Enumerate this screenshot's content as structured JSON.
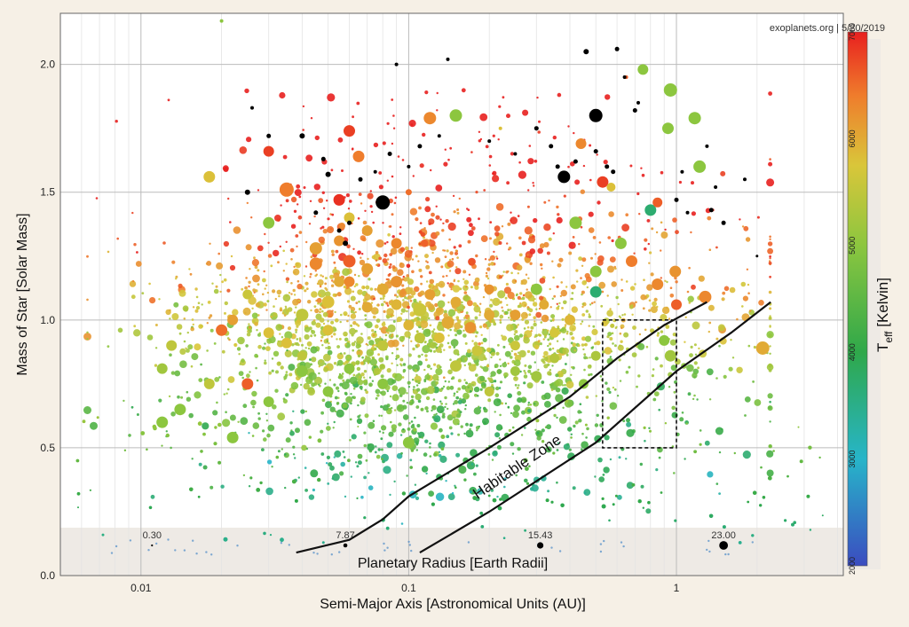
{
  "chart_data": {
    "type": "scatter",
    "credit": "exoplanets.org | 5/20/2019",
    "xlabel": "Semi-Major Axis [Astronomical Units (AU)]",
    "ylabel": "Mass of Star [Solar Mass]",
    "x_scale": "log",
    "xlim": [
      0.005,
      4.2
    ],
    "ylim": [
      0.0,
      2.2
    ],
    "x_ticks": [
      {
        "value": 0.01,
        "label": "0.01"
      },
      {
        "value": 0.1,
        "label": "0.1"
      },
      {
        "value": 1,
        "label": "1"
      }
    ],
    "y_ticks": [
      {
        "value": 0.0,
        "label": "0.0"
      },
      {
        "value": 0.5,
        "label": "0.5"
      },
      {
        "value": 1.0,
        "label": "1.0"
      },
      {
        "value": 1.5,
        "label": "1.5"
      },
      {
        "value": 2.0,
        "label": "2.0"
      }
    ],
    "grid": true,
    "colorbar": {
      "title_main": "T",
      "title_sub": "eff",
      "title_rest": " [Kelvin]",
      "range": [
        2000,
        7000
      ],
      "ticks": [
        {
          "value": 2000,
          "label": "2000"
        },
        {
          "value": 3000,
          "label": "3000"
        },
        {
          "value": 4000,
          "label": "4000"
        },
        {
          "value": 5000,
          "label": "5000"
        },
        {
          "value": 6000,
          "label": "6000"
        },
        {
          "value": 7000,
          "label": "7000"
        }
      ]
    },
    "size_legend": {
      "title": "Planetary Radius [Earth Radii]",
      "entries": [
        {
          "label": "0.30",
          "x": 0.011,
          "radius_earth": 0.3
        },
        {
          "label": "7.87",
          "x": 0.058,
          "radius_earth": 7.87
        },
        {
          "label": "15.43",
          "x": 0.31,
          "radius_earth": 15.43
        },
        {
          "label": "23.00",
          "x": 1.5,
          "radius_earth": 23.0
        }
      ]
    },
    "habitable_zone": {
      "label": "Habitable Zone",
      "inner_edge": [
        [
          0.038,
          0.09
        ],
        [
          0.06,
          0.14
        ],
        [
          0.08,
          0.22
        ],
        [
          0.1,
          0.31
        ],
        [
          0.2,
          0.5
        ],
        [
          0.4,
          0.7
        ],
        [
          0.6,
          0.85
        ],
        [
          0.9,
          0.98
        ],
        [
          1.3,
          1.07
        ]
      ],
      "outer_edge": [
        [
          0.11,
          0.09
        ],
        [
          0.2,
          0.25
        ],
        [
          0.5,
          0.52
        ],
        [
          1.0,
          0.8
        ],
        [
          1.6,
          0.95
        ],
        [
          2.25,
          1.07
        ]
      ]
    },
    "highlight_box": {
      "x": [
        0.53,
        1.0
      ],
      "y": [
        0.5,
        1.0
      ]
    },
    "series": [
      {
        "points": [
          [
            0.02,
            2.17,
            5000,
            4
          ],
          [
            0.018,
            1.56,
            5800,
            13
          ],
          [
            0.03,
            1.66,
            6800,
            12
          ],
          [
            0.035,
            1.51,
            6400,
            16
          ],
          [
            0.06,
            1.74,
            6800,
            13
          ],
          [
            0.065,
            1.64,
            6400,
            13
          ],
          [
            0.055,
            1.47,
            6900,
            13
          ],
          [
            0.08,
            1.46,
            0,
            16
          ],
          [
            0.1,
            1.5,
            6500,
            7
          ],
          [
            0.12,
            1.79,
            6300,
            14
          ],
          [
            0.15,
            1.8,
            5000,
            14
          ],
          [
            0.22,
            1.75,
            5800,
            4
          ],
          [
            0.38,
            1.56,
            0,
            14
          ],
          [
            0.5,
            1.8,
            0,
            15
          ],
          [
            0.44,
            1.69,
            6300,
            12
          ],
          [
            0.53,
            1.54,
            6800,
            13
          ],
          [
            0.57,
            1.52,
            5800,
            10
          ],
          [
            0.8,
            1.43,
            3700,
            13
          ],
          [
            0.85,
            1.46,
            6600,
            11
          ],
          [
            0.93,
            1.75,
            5000,
            13
          ],
          [
            0.95,
            1.9,
            5000,
            15
          ],
          [
            1.17,
            1.79,
            5000,
            14
          ],
          [
            1.22,
            1.6,
            5000,
            14
          ],
          [
            0.75,
            1.98,
            5000,
            12
          ],
          [
            0.65,
            1.95,
            6600,
            4
          ],
          [
            0.72,
            1.85,
            0,
            4
          ],
          [
            0.42,
            1.38,
            5000,
            14
          ],
          [
            0.5,
            1.19,
            5000,
            13
          ],
          [
            0.5,
            1.11,
            3700,
            13
          ],
          [
            0.62,
            1.3,
            5000,
            13
          ],
          [
            0.68,
            1.23,
            6400,
            13
          ],
          [
            0.85,
            1.14,
            6300,
            13
          ],
          [
            0.99,
            1.19,
            6200,
            13
          ],
          [
            1.28,
            1.09,
            6300,
            14
          ],
          [
            1.0,
            1.06,
            6600,
            12
          ],
          [
            0.9,
            0.92,
            5000,
            12
          ],
          [
            0.95,
            0.86,
            5200,
            13
          ],
          [
            2.1,
            0.89,
            6000,
            15
          ],
          [
            0.3,
            1.12,
            5000,
            13
          ],
          [
            0.2,
            1.02,
            6000,
            12
          ],
          [
            0.11,
            1.04,
            5600,
            15
          ],
          [
            0.14,
            0.99,
            6000,
            14
          ],
          [
            0.17,
            0.97,
            6200,
            13
          ],
          [
            0.09,
            1.15,
            6200,
            13
          ],
          [
            0.07,
            1.2,
            6100,
            13
          ],
          [
            0.06,
            1.23,
            6600,
            14
          ],
          [
            0.05,
            1.07,
            5800,
            14
          ],
          [
            0.04,
            1.02,
            5500,
            14
          ],
          [
            0.03,
            1.38,
            5000,
            13
          ],
          [
            0.025,
            1.1,
            5600,
            11
          ],
          [
            0.022,
            1.0,
            6100,
            12
          ],
          [
            0.02,
            0.96,
            6500,
            13
          ],
          [
            0.013,
            0.9,
            5500,
            12
          ],
          [
            0.012,
            0.81,
            5200,
            12
          ],
          [
            0.012,
            0.6,
            5000,
            13
          ],
          [
            0.014,
            0.65,
            5000,
            13
          ],
          [
            0.018,
            0.75,
            5500,
            12
          ],
          [
            0.022,
            0.54,
            5000,
            13
          ],
          [
            0.025,
            0.75,
            6600,
            13
          ],
          [
            0.04,
            0.8,
            5000,
            13
          ],
          [
            0.06,
            0.81,
            5000,
            12
          ],
          [
            0.1,
            0.52,
            5000,
            13
          ],
          [
            0.15,
            0.82,
            5500,
            13
          ],
          [
            0.2,
            0.72,
            5500,
            11
          ],
          [
            0.25,
            0.8,
            5200,
            11
          ],
          [
            0.035,
            0.91,
            5800,
            12
          ],
          [
            0.045,
            1.28,
            6100,
            14
          ],
          [
            0.06,
            1.4,
            5800,
            12
          ],
          [
            0.07,
            1.35,
            6100,
            12
          ],
          [
            0.09,
            1.3,
            6300,
            12
          ],
          [
            0.045,
            1.22,
            6300,
            14
          ],
          [
            0.055,
            1.15,
            6000,
            12
          ],
          [
            0.08,
            1.12,
            6000,
            13
          ],
          [
            0.12,
            1.1,
            6100,
            12
          ],
          [
            0.15,
            1.07,
            6000,
            12
          ],
          [
            0.25,
            1.02,
            6100,
            12
          ],
          [
            0.2,
            1.12,
            6200,
            11
          ],
          [
            0.4,
            1.0,
            5900,
            12
          ],
          [
            0.35,
            0.95,
            5700,
            11
          ],
          [
            0.32,
            1.06,
            6000,
            11
          ],
          [
            0.05,
            0.96,
            5800,
            12
          ],
          [
            0.08,
            0.9,
            5500,
            12
          ],
          [
            0.1,
            0.98,
            5900,
            12
          ],
          [
            0.13,
            0.93,
            5800,
            12
          ],
          [
            0.18,
            0.88,
            5600,
            12
          ],
          [
            0.25,
            0.9,
            5600,
            11
          ],
          [
            0.04,
            0.86,
            5500,
            11
          ],
          [
            0.03,
            0.95,
            5800,
            12
          ],
          [
            0.055,
            1.31,
            6200,
            12
          ],
          [
            0.06,
            1.15,
            6300,
            12
          ],
          [
            0.07,
            1.05,
            6000,
            12
          ],
          [
            0.09,
            1.06,
            5900,
            12
          ],
          [
            0.11,
            0.93,
            5500,
            12
          ],
          [
            0.3,
            0.78,
            5200,
            12
          ],
          [
            0.35,
            0.85,
            5400,
            11
          ],
          [
            0.45,
            0.75,
            5000,
            11
          ],
          [
            0.5,
            0.86,
            5300,
            11
          ],
          [
            0.08,
            0.75,
            5000,
            12
          ],
          [
            0.05,
            0.72,
            5000,
            12
          ],
          [
            0.03,
            0.68,
            5000,
            12
          ],
          [
            0.03,
            1.72,
            0,
            5
          ],
          [
            0.026,
            1.83,
            0,
            4
          ],
          [
            0.025,
            1.5,
            0,
            6
          ],
          [
            0.04,
            1.72,
            0,
            6
          ],
          [
            0.048,
            1.63,
            0,
            5
          ],
          [
            0.05,
            1.57,
            0,
            6
          ],
          [
            0.045,
            1.42,
            0,
            5
          ],
          [
            0.055,
            1.35,
            0,
            5
          ],
          [
            0.058,
            1.3,
            0,
            6
          ],
          [
            0.06,
            1.38,
            0,
            5
          ],
          [
            0.066,
            1.55,
            0,
            5
          ],
          [
            0.075,
            1.58,
            0,
            4
          ],
          [
            0.085,
            1.65,
            0,
            5
          ],
          [
            0.1,
            1.6,
            0,
            4
          ],
          [
            0.11,
            1.68,
            0,
            5
          ],
          [
            0.13,
            1.72,
            0,
            4
          ],
          [
            0.09,
            2.0,
            0,
            4
          ],
          [
            0.14,
            2.02,
            0,
            4
          ],
          [
            0.3,
            1.75,
            0,
            5
          ],
          [
            0.34,
            1.68,
            0,
            5
          ],
          [
            0.36,
            1.6,
            0,
            5
          ],
          [
            0.42,
            1.62,
            0,
            5
          ],
          [
            0.46,
            2.05,
            0,
            6
          ],
          [
            0.5,
            1.66,
            0,
            5
          ],
          [
            0.55,
            1.6,
            0,
            5
          ],
          [
            0.6,
            2.06,
            0,
            5
          ],
          [
            0.64,
            1.95,
            0,
            4
          ],
          [
            0.7,
            1.82,
            0,
            5
          ],
          [
            1.05,
            1.58,
            0,
            4
          ],
          [
            1.3,
            1.68,
            0,
            4
          ],
          [
            1.4,
            1.52,
            0,
            4
          ],
          [
            1.35,
            1.43,
            0,
            5
          ],
          [
            1.5,
            1.38,
            0,
            5
          ],
          [
            1.0,
            1.47,
            0,
            5
          ],
          [
            1.1,
            1.42,
            0,
            4
          ],
          [
            0.58,
            1.58,
            0,
            5
          ],
          [
            0.2,
            1.7,
            0,
            4
          ],
          [
            0.25,
            1.65,
            0,
            4
          ],
          [
            1.8,
            1.55,
            0,
            4
          ],
          [
            2.0,
            1.25,
            0,
            3
          ]
        ]
      }
    ]
  }
}
